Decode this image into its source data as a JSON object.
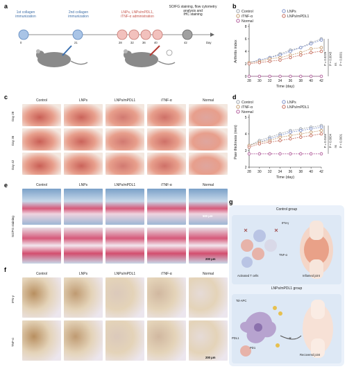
{
  "panels": {
    "a": "a",
    "b": "b",
    "c": "c",
    "d": "d",
    "e": "e",
    "f": "f",
    "g": "g"
  },
  "timeline": {
    "ev1": "1st collagen\nimmunization",
    "ev2": "2nd collagen\nimmunization",
    "ev3": "LNPs, LNPs/mPDL1,\niTNF-α administration",
    "ev4": "SO/FG staining, flow cytometry\nanalysis and\nIHC staining",
    "days": [
      "0",
      "21",
      "28",
      "32",
      "36",
      "40",
      "42"
    ],
    "axis_label": "Day"
  },
  "legend": {
    "control": "Control",
    "lnps": "LNPs",
    "itnf": "iTNF-α",
    "lnps_mpdl1": "LNPs/mPDL1",
    "normal": "Normal"
  },
  "colors": {
    "control": "#9aa0a8",
    "lnps": "#7b8fc7",
    "itnf": "#c49a6c",
    "lnps_mpdl1": "#c46a5a",
    "normal": "#b05a9a",
    "timeline_blue": "#8fb0d8",
    "timeline_red": "#e9a9a4",
    "timeline_gray": "#888888",
    "bg_g": "#eaf1fa"
  },
  "chart_data": [
    {
      "type": "line",
      "panel": "b",
      "xlabel": "Time (day)",
      "ylabel": "Arthritis index",
      "x": [
        28,
        30,
        32,
        34,
        36,
        38,
        40,
        42
      ],
      "ylim": [
        0,
        8
      ],
      "yticks": [
        0,
        2,
        4,
        6,
        8
      ],
      "series": [
        {
          "name": "Control",
          "values": [
            2.2,
            2.6,
            3.0,
            3.6,
            4.2,
            4.6,
            5.4,
            6.0
          ]
        },
        {
          "name": "LNPs",
          "values": [
            2.2,
            2.6,
            3.0,
            3.4,
            4.0,
            4.6,
            5.2,
            5.8
          ]
        },
        {
          "name": "iTNF-α",
          "values": [
            2.2,
            2.4,
            2.8,
            3.0,
            3.4,
            3.8,
            4.4,
            4.6
          ]
        },
        {
          "name": "LNPs/mPDL1",
          "values": [
            2.0,
            2.2,
            2.4,
            2.6,
            3.0,
            3.4,
            3.8,
            4.0
          ]
        },
        {
          "name": "Normal",
          "values": [
            0,
            0,
            0,
            0,
            0,
            0,
            0,
            0
          ]
        }
      ],
      "annotations": [
        "P = 0.0229",
        "P = 0.0043",
        "ns",
        "P < 0.0001"
      ]
    },
    {
      "type": "line",
      "panel": "d",
      "xlabel": "Time (day)",
      "ylabel": "Paw thickness (mm)",
      "x": [
        28,
        30,
        32,
        34,
        36,
        38,
        40,
        42
      ],
      "ylim": [
        2,
        5
      ],
      "yticks": [
        2,
        3,
        4,
        5
      ],
      "series": [
        {
          "name": "Control",
          "values": [
            3.3,
            3.6,
            3.8,
            4.0,
            4.2,
            4.3,
            4.4,
            4.5
          ]
        },
        {
          "name": "LNPs",
          "values": [
            3.3,
            3.5,
            3.7,
            3.9,
            4.1,
            4.2,
            4.3,
            4.4
          ]
        },
        {
          "name": "iTNF-α",
          "values": [
            3.3,
            3.5,
            3.6,
            3.8,
            3.9,
            4.0,
            4.1,
            4.2
          ]
        },
        {
          "name": "LNPs/mPDL1",
          "values": [
            3.2,
            3.4,
            3.5,
            3.6,
            3.7,
            3.8,
            3.9,
            4.0
          ]
        },
        {
          "name": "Normal",
          "values": [
            2.8,
            2.8,
            2.8,
            2.8,
            2.8,
            2.8,
            2.8,
            2.8
          ]
        }
      ],
      "annotations": [
        "P = 0.0165",
        "P = 0.0004",
        "ns",
        "P < 0.0001"
      ]
    }
  ],
  "c": {
    "cols": [
      "Control",
      "LNPs",
      "LNPs/mPDL1",
      "iTNF-α",
      "Normal"
    ],
    "rows": [
      "Day 28",
      "Day 36",
      "Day 42"
    ]
  },
  "e": {
    "cols": [
      "Control",
      "LNPs",
      "LNPs/mPDL1",
      "iTNF-α",
      "Normal"
    ],
    "row_label": "SO/FG staining",
    "scale1": "500 μm",
    "scale2": "200 μm"
  },
  "f": {
    "cols": [
      "Control",
      "LNPs",
      "LNPs/mPDL1",
      "iTNF-α",
      "Normal"
    ],
    "rows": [
      "IFN-γ",
      "TNF-α"
    ],
    "scale": "200 μm"
  },
  "g": {
    "top_title": "Control group",
    "ifn": "IFN-γ",
    "tnf": "TNF-α",
    "activated": "Activated T cells",
    "inflamed": "Inflamed joint",
    "bottom_title": "LNPs/mPDL1 group",
    "tol": "Tol-APC",
    "pdl1": "PDL1",
    "pd1": "PD1",
    "recovered": "Recovered joint"
  }
}
